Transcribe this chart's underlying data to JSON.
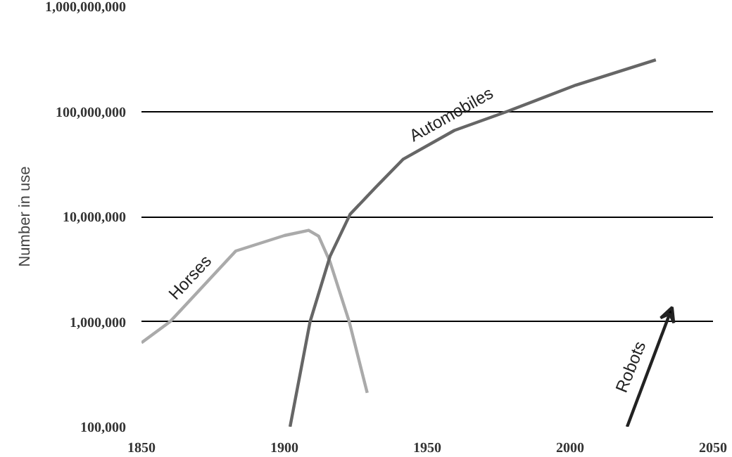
{
  "chart_data": {
    "type": "line",
    "ylabel": "Number in use",
    "log": "y",
    "grid": "y",
    "annotations": [
      "Robots"
    ],
    "xlim": [
      1850,
      2050
    ],
    "xticks": [
      1850,
      1900,
      1950,
      2000,
      2050
    ],
    "ylim": [
      100000,
      1000000000
    ],
    "yticks": [
      {
        "value": 100000,
        "label": "100,000"
      },
      {
        "value": 1000000,
        "label": "1,000,000"
      },
      {
        "value": 10000000,
        "label": "10,000,000"
      },
      {
        "value": 100000000,
        "label": "100,000,000"
      },
      {
        "value": 1000000000,
        "label": "1,000,000,000"
      }
    ],
    "series": [
      {
        "name": "Horses",
        "color": "#aaaaaa",
        "x": [
          1850,
          1860,
          1883,
          1900,
          1908.5,
          1912,
          1916,
          1922.7,
          1929
        ],
        "values": [
          630000,
          1000000,
          4700000,
          6600000,
          7400000,
          6500000,
          3700000,
          1000000,
          210000
        ]
      },
      {
        "name": "Automobiles",
        "color": "#666666",
        "x": [
          1902,
          1909,
          1916,
          1923,
          1932,
          1941.5,
          1959.5,
          1978,
          2002,
          2030
        ],
        "values": [
          100000,
          1000000,
          4200000,
          10500000,
          19000000,
          35000000,
          66000000,
          100000000,
          178000000,
          310000000
        ]
      }
    ]
  }
}
